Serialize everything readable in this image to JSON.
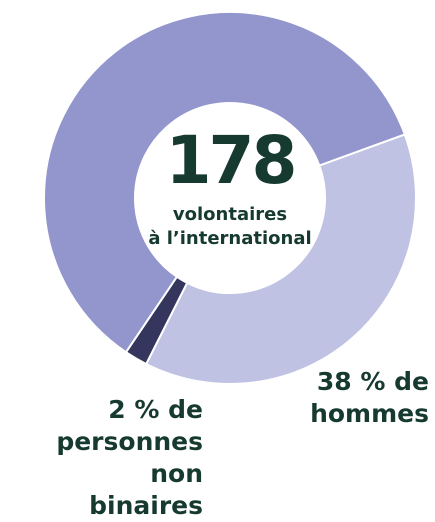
{
  "chart_data": {
    "type": "donut",
    "values": [
      38,
      2,
      60
    ],
    "value_labels": [
      "38 % de\nhommes",
      "2 % de\npersonnes non\nbinaires",
      null
    ],
    "colors": [
      "#bfc2e2",
      "#34365e",
      "#9296cd"
    ],
    "center_value": 178,
    "center_label": "volontaires\nà l’international"
  }
}
